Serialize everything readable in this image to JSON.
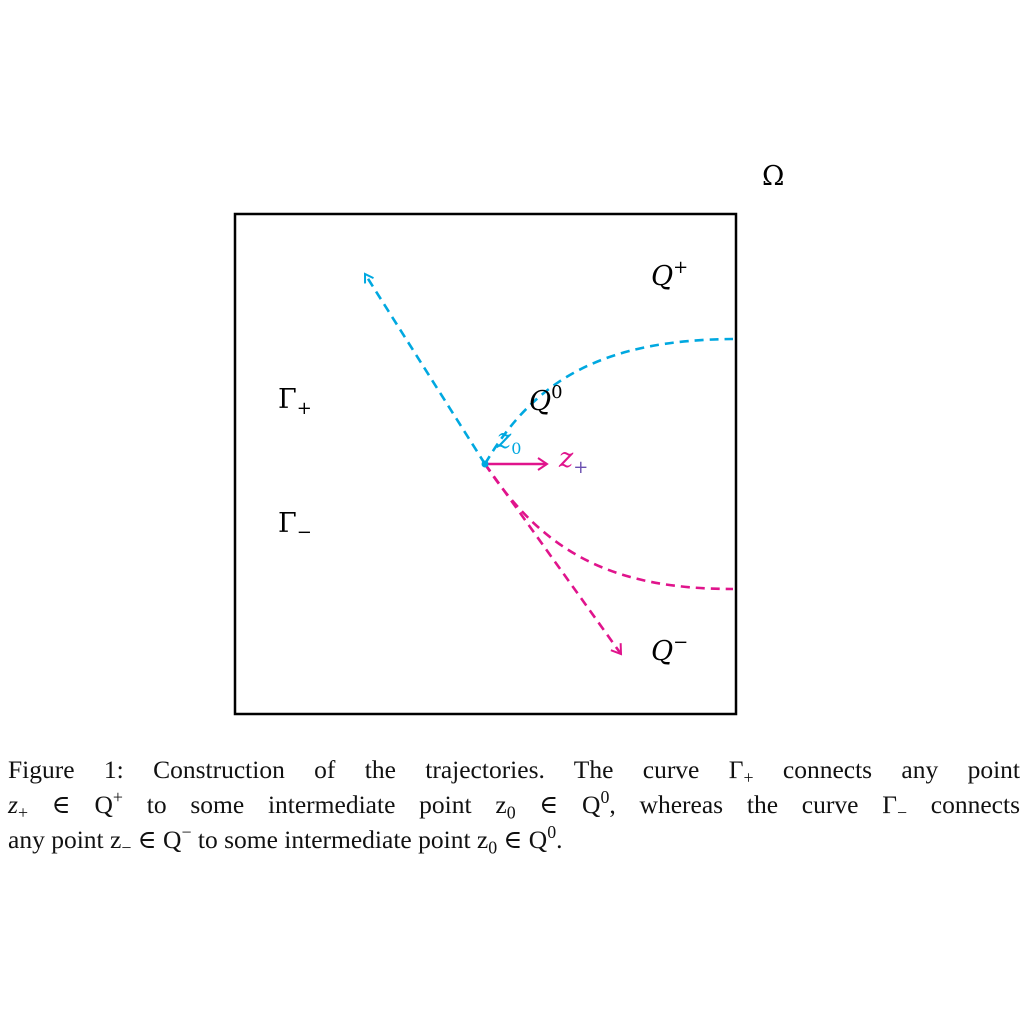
{
  "figure": {
    "domain_label": "Ω",
    "region_top_label": "Q",
    "region_top_sup": "+",
    "region_mid_label": "Q",
    "region_mid_sup": "0",
    "region_bot_label": "Q",
    "region_bot_sup": "−",
    "gamma_plus_label": "Γ",
    "gamma_plus_sub": "+",
    "gamma_minus_label": "Γ",
    "gamma_minus_sub": "−",
    "z0_label": "z",
    "z0_sub": "0",
    "zplus_label": "z",
    "zplus_sub": "+",
    "colors": {
      "cyan": "#00a8e0",
      "magenta": "#e0148c",
      "frame": "#000000"
    }
  },
  "caption": {
    "line1": "Figure 1: Construction of the trajectories. The curve Γ",
    "line1_sub": "+",
    "line1_end": " connects any point",
    "line2_a": "z",
    "line2_a_sub": "+",
    "line2_b": " ∈ Q",
    "line2_b_sup": "+",
    "line2_c": " to some intermediate point z",
    "line2_c_sub": "0",
    "line2_d": " ∈ Q",
    "line2_d_sup": "0",
    "line2_e": ", whereas the curve Γ",
    "line2_e_sub": "−",
    "line2_f": " connects",
    "line3_a": "any point z",
    "line3_a_sub": "−",
    "line3_b": " ∈ Q",
    "line3_b_sup": "−",
    "line3_c": " to some intermediate point z",
    "line3_c_sub": "0",
    "line3_d": " ∈ Q",
    "line3_d_sup": "0",
    "line3_e": "."
  }
}
